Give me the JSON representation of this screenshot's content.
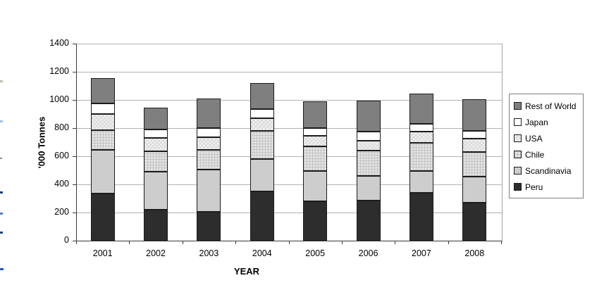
{
  "chart_data": {
    "type": "bar",
    "stacked": true,
    "title": "",
    "xlabel": "YEAR",
    "ylabel": "'000 Tonnes",
    "ylim": [
      0,
      1400
    ],
    "ytick_step": 200,
    "ytick_labels": [
      "0",
      "200",
      "400",
      "600",
      "800",
      "1000",
      "1200",
      "1400"
    ],
    "grid": true,
    "legend_position": "right",
    "categories": [
      "2001",
      "2002",
      "2003",
      "2004",
      "2005",
      "2006",
      "2007",
      "2008"
    ],
    "series": [
      {
        "name": "Peru",
        "key": "peru",
        "color": "#2d2d2d",
        "pattern": "solid",
        "values": [
          335,
          220,
          205,
          350,
          280,
          285,
          340,
          270
        ]
      },
      {
        "name": "Scandinavia",
        "key": "scandinavia",
        "color": "#cdcdcd",
        "pattern": "solid",
        "values": [
          310,
          270,
          300,
          230,
          215,
          175,
          155,
          185
        ]
      },
      {
        "name": "Chile",
        "key": "chile",
        "color": "#e4e4e4",
        "pattern": "grid",
        "values": [
          140,
          145,
          140,
          200,
          175,
          180,
          200,
          175
        ]
      },
      {
        "name": "USA",
        "key": "usa",
        "color": "#efefef",
        "pattern": "diagonal-crosshatch",
        "values": [
          115,
          95,
          90,
          90,
          75,
          70,
          80,
          95
        ]
      },
      {
        "name": "Japan",
        "key": "japan",
        "color": "#ffffff",
        "pattern": "solid",
        "values": [
          75,
          60,
          65,
          65,
          55,
          65,
          55,
          55
        ]
      },
      {
        "name": "Rest of World",
        "key": "row",
        "color": "#7f7f7f",
        "pattern": "solid",
        "values": [
          180,
          155,
          210,
          185,
          190,
          220,
          215,
          225
        ]
      }
    ],
    "totals": [
      1155,
      945,
      1010,
      1120,
      990,
      995,
      1045,
      1005
    ],
    "legend": [
      "Rest of World",
      "Japan",
      "USA",
      "Chile",
      "Scandinavia",
      "Peru"
    ],
    "axis_colors": {
      "axis_line": "#3a3a3a",
      "gridline": "#b2b2b2",
      "segment_border": "#1c1c1c"
    }
  },
  "edge_marks": [
    {
      "y": 114,
      "w": 4,
      "h": 3,
      "color": "#bdbdae"
    },
    {
      "y": 171,
      "w": 4,
      "h": 3,
      "color": "#9dc3e6"
    },
    {
      "y": 224,
      "w": 3,
      "h": 2,
      "color": "#8a8a8a"
    },
    {
      "y": 272,
      "w": 4,
      "h": 3,
      "color": "#16418c"
    },
    {
      "y": 302,
      "w": 4,
      "h": 3,
      "color": "#4f7bd9"
    },
    {
      "y": 329,
      "w": 4,
      "h": 3,
      "color": "#16418c"
    },
    {
      "y": 381,
      "w": 5,
      "h": 3,
      "color": "#2653c9"
    }
  ]
}
